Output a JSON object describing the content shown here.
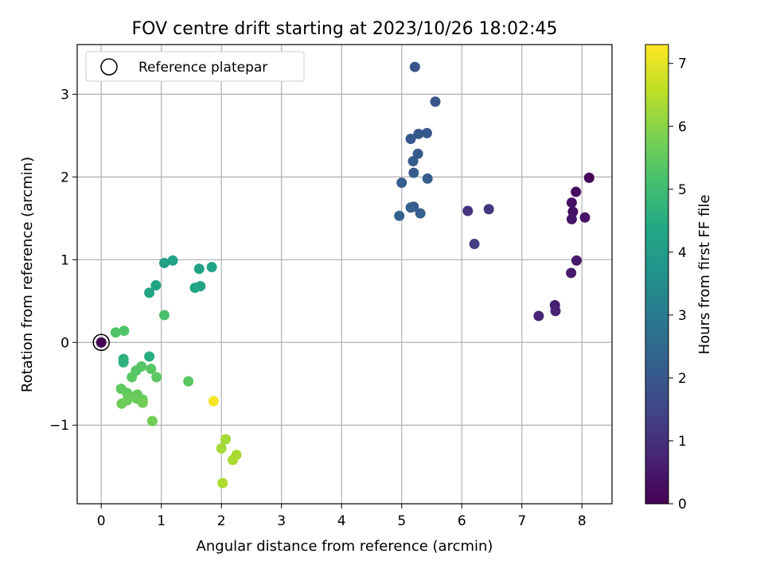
{
  "chart_data": {
    "type": "scatter",
    "title": "FOV centre drift starting at 2023/10/26 18:02:45",
    "xlabel": "Angular distance from reference (arcmin)",
    "ylabel": "Rotation from reference (arcmin)",
    "xlim": [
      -0.4,
      8.5
    ],
    "ylim": [
      -1.95,
      3.6
    ],
    "xticks": [
      0,
      1,
      2,
      3,
      4,
      5,
      6,
      7,
      8
    ],
    "yticks": [
      -1,
      0,
      1,
      2,
      3
    ],
    "xtick_labels": [
      "0",
      "1",
      "2",
      "3",
      "4",
      "5",
      "6",
      "7",
      "8"
    ],
    "ytick_labels": [
      "−1",
      "0",
      "1",
      "2",
      "3"
    ],
    "grid": true,
    "legend": {
      "position": "upper-left",
      "entries": [
        "Reference platepar"
      ]
    },
    "reference_point": {
      "x": 0,
      "y": 0
    },
    "colorbar": {
      "label": "Hours from first FF file",
      "colormap": "viridis",
      "range": [
        0,
        7.3
      ],
      "ticks": [
        0,
        1,
        2,
        3,
        4,
        5,
        6,
        7
      ],
      "tick_labels": [
        "0",
        "1",
        "2",
        "3",
        "4",
        "5",
        "6",
        "7"
      ]
    },
    "series": [
      {
        "marker": "circle",
        "points": [
          {
            "x": 0.0,
            "y": 0.0,
            "hours": 0.0
          },
          {
            "x": 8.12,
            "y": 1.99,
            "hours": 0.1
          },
          {
            "x": 7.9,
            "y": 1.82,
            "hours": 0.2
          },
          {
            "x": 7.83,
            "y": 1.69,
            "hours": 0.3
          },
          {
            "x": 7.85,
            "y": 1.58,
            "hours": 0.35
          },
          {
            "x": 8.05,
            "y": 1.51,
            "hours": 0.4
          },
          {
            "x": 7.83,
            "y": 1.49,
            "hours": 0.45
          },
          {
            "x": 7.91,
            "y": 0.99,
            "hours": 0.5
          },
          {
            "x": 7.82,
            "y": 0.84,
            "hours": 0.55
          },
          {
            "x": 7.55,
            "y": 0.45,
            "hours": 0.6
          },
          {
            "x": 7.56,
            "y": 0.38,
            "hours": 0.7
          },
          {
            "x": 7.28,
            "y": 0.32,
            "hours": 0.75
          },
          {
            "x": 6.1,
            "y": 1.59,
            "hours": 1.1
          },
          {
            "x": 6.45,
            "y": 1.61,
            "hours": 1.15
          },
          {
            "x": 6.21,
            "y": 1.19,
            "hours": 1.3
          },
          {
            "x": 5.22,
            "y": 3.33,
            "hours": 1.9
          },
          {
            "x": 5.56,
            "y": 2.91,
            "hours": 1.95
          },
          {
            "x": 5.42,
            "y": 2.53,
            "hours": 2.0
          },
          {
            "x": 5.28,
            "y": 2.52,
            "hours": 2.0
          },
          {
            "x": 5.15,
            "y": 2.46,
            "hours": 2.05
          },
          {
            "x": 5.27,
            "y": 2.28,
            "hours": 2.05
          },
          {
            "x": 5.19,
            "y": 2.19,
            "hours": 2.1
          },
          {
            "x": 5.2,
            "y": 2.05,
            "hours": 2.1
          },
          {
            "x": 5.43,
            "y": 1.98,
            "hours": 2.15
          },
          {
            "x": 5.0,
            "y": 1.93,
            "hours": 2.15
          },
          {
            "x": 5.15,
            "y": 1.63,
            "hours": 2.2
          },
          {
            "x": 5.2,
            "y": 1.64,
            "hours": 2.2
          },
          {
            "x": 4.96,
            "y": 1.53,
            "hours": 2.25
          },
          {
            "x": 5.31,
            "y": 1.56,
            "hours": 2.25
          },
          {
            "x": 1.05,
            "y": 0.96,
            "hours": 4.1
          },
          {
            "x": 1.19,
            "y": 0.99,
            "hours": 4.15
          },
          {
            "x": 1.84,
            "y": 0.91,
            "hours": 4.2
          },
          {
            "x": 1.63,
            "y": 0.89,
            "hours": 4.2
          },
          {
            "x": 0.91,
            "y": 0.69,
            "hours": 4.25
          },
          {
            "x": 1.65,
            "y": 0.68,
            "hours": 4.25
          },
          {
            "x": 1.56,
            "y": 0.66,
            "hours": 4.3
          },
          {
            "x": 0.8,
            "y": 0.6,
            "hours": 4.3
          },
          {
            "x": 0.8,
            "y": -0.17,
            "hours": 4.5
          },
          {
            "x": 0.37,
            "y": -0.2,
            "hours": 4.6
          },
          {
            "x": 0.37,
            "y": -0.24,
            "hours": 4.65
          },
          {
            "x": 1.05,
            "y": 0.33,
            "hours": 5.2
          },
          {
            "x": 0.38,
            "y": 0.14,
            "hours": 5.3
          },
          {
            "x": 0.24,
            "y": 0.12,
            "hours": 5.3
          },
          {
            "x": 0.67,
            "y": -0.29,
            "hours": 5.35
          },
          {
            "x": 0.58,
            "y": -0.34,
            "hours": 5.35
          },
          {
            "x": 0.83,
            "y": -0.32,
            "hours": 5.4
          },
          {
            "x": 0.51,
            "y": -0.42,
            "hours": 5.4
          },
          {
            "x": 0.92,
            "y": -0.42,
            "hours": 5.45
          },
          {
            "x": 1.45,
            "y": -0.47,
            "hours": 5.45
          },
          {
            "x": 0.33,
            "y": -0.56,
            "hours": 5.5
          },
          {
            "x": 0.43,
            "y": -0.61,
            "hours": 5.5
          },
          {
            "x": 0.6,
            "y": -0.63,
            "hours": 5.55
          },
          {
            "x": 0.48,
            "y": -0.65,
            "hours": 5.55
          },
          {
            "x": 0.59,
            "y": -0.68,
            "hours": 5.6
          },
          {
            "x": 0.69,
            "y": -0.69,
            "hours": 5.6
          },
          {
            "x": 0.43,
            "y": -0.7,
            "hours": 5.65
          },
          {
            "x": 0.34,
            "y": -0.74,
            "hours": 5.65
          },
          {
            "x": 0.69,
            "y": -0.73,
            "hours": 5.7
          },
          {
            "x": 0.85,
            "y": -0.95,
            "hours": 5.7
          },
          {
            "x": 2.07,
            "y": -1.17,
            "hours": 6.3
          },
          {
            "x": 2.0,
            "y": -1.28,
            "hours": 6.3
          },
          {
            "x": 2.25,
            "y": -1.36,
            "hours": 6.35
          },
          {
            "x": 2.19,
            "y": -1.42,
            "hours": 6.35
          },
          {
            "x": 2.02,
            "y": -1.7,
            "hours": 6.4
          },
          {
            "x": 1.87,
            "y": -0.71,
            "hours": 7.2
          }
        ]
      }
    ]
  }
}
